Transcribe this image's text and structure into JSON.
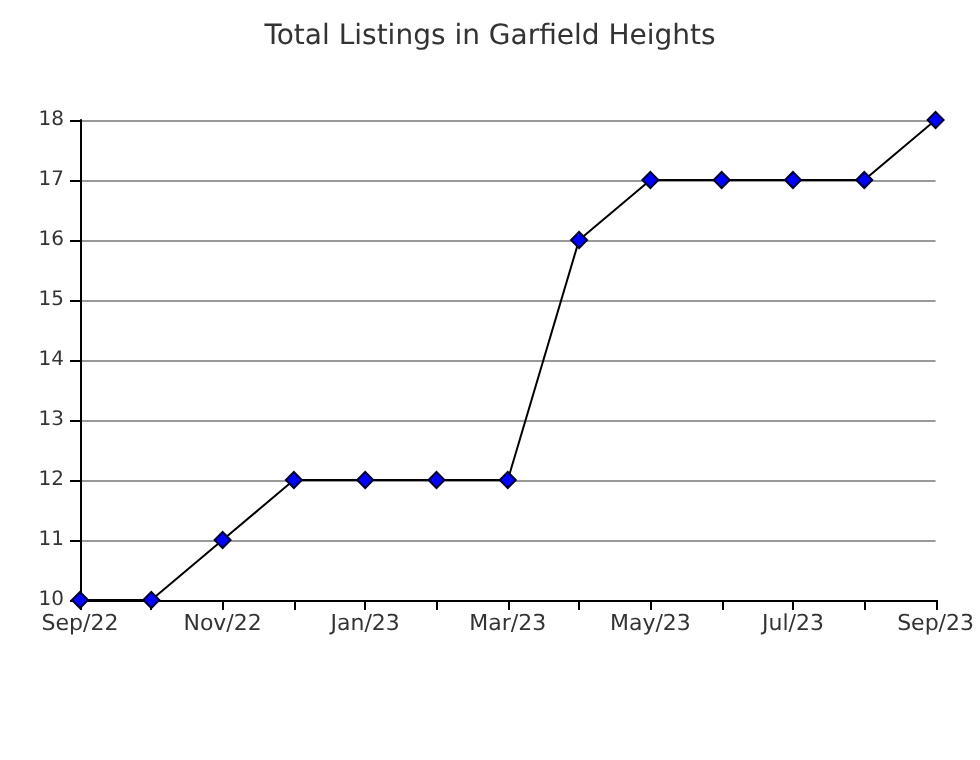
{
  "chart_data": {
    "type": "line",
    "title": "Total Listings in Garfield Heights",
    "categories": [
      "Sep/22",
      null,
      "Nov/22",
      null,
      "Jan/23",
      null,
      "Mar/23",
      null,
      "May/23",
      null,
      "Jul/23",
      null,
      "Sep/23"
    ],
    "series": [
      {
        "color": "#0000ff",
        "values": [
          10,
          10,
          11,
          12,
          12,
          12,
          12,
          16,
          17,
          17,
          17,
          17,
          18
        ]
      }
    ],
    "ylim": [
      10,
      18
    ],
    "yticks": [
      10,
      11,
      12,
      13,
      14,
      15,
      16,
      17,
      18
    ],
    "grid": "y",
    "marker": "diamond",
    "line_style": "solid"
  }
}
